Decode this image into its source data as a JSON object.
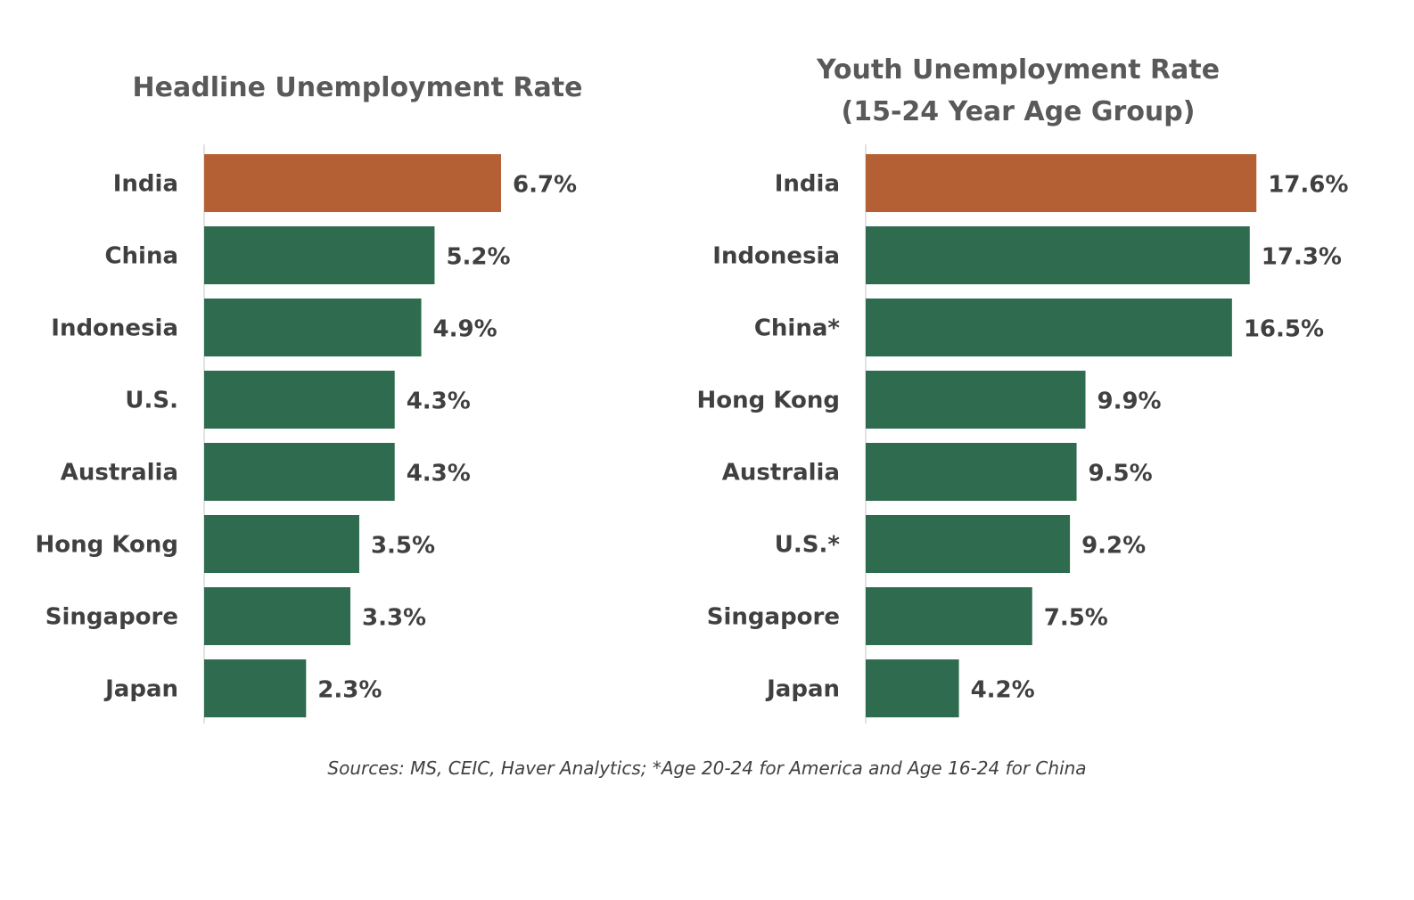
{
  "chart_data": [
    {
      "type": "bar",
      "orientation": "horizontal",
      "title": "Headline Unemployment Rate",
      "categories": [
        "India",
        "China",
        "Indonesia",
        "U.S.",
        "Australia",
        "Hong Kong",
        "Singapore",
        "Japan"
      ],
      "values": [
        6.7,
        5.2,
        4.9,
        4.3,
        4.3,
        3.5,
        3.3,
        2.3
      ],
      "value_labels": [
        "6.7%",
        "5.2%",
        "4.9%",
        "4.3%",
        "4.3%",
        "3.5%",
        "3.3%",
        "2.3%"
      ],
      "unit": "%",
      "highlight_category": "India",
      "grid": false,
      "legend": "none"
    },
    {
      "type": "bar",
      "orientation": "horizontal",
      "title": "Youth Unemployment Rate\n(15-24 Year Age Group)",
      "categories": [
        "India",
        "Indonesia",
        "China*",
        "Hong Kong",
        "Australia",
        "U.S.*",
        "Singapore",
        "Japan"
      ],
      "values": [
        17.6,
        17.3,
        16.5,
        9.9,
        9.5,
        9.2,
        7.5,
        4.2
      ],
      "value_labels": [
        "17.6%",
        "17.3%",
        "16.5%",
        "9.9%",
        "9.5%",
        "9.2%",
        "7.5%",
        "4.2%"
      ],
      "unit": "%",
      "highlight_category": "India",
      "grid": false,
      "legend": "none"
    }
  ],
  "colors": {
    "highlight": "#B46034",
    "default_bar": "#2E6B4F",
    "axis": "#D9D9D9",
    "text": "#404040",
    "title": "#595959"
  },
  "source_note": "Sources: MS, CEIC, Haver Analytics; *Age 20-24 for America and Age 16-24 for China"
}
